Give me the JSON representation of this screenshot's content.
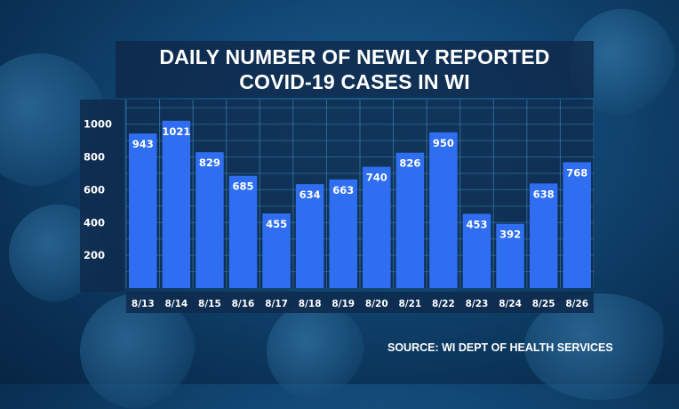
{
  "chart_data": {
    "type": "bar",
    "title": "DAILY NUMBER OF NEWLY REPORTED COVID-19 CASES IN WI",
    "title_lines": [
      "DAILY NUMBER OF NEWLY REPORTED",
      "COVID-19 CASES IN WI"
    ],
    "categories": [
      "8/13",
      "8/14",
      "8/15",
      "8/16",
      "8/17",
      "8/18",
      "8/19",
      "8/20",
      "8/21",
      "8/22",
      "8/23",
      "8/24",
      "8/25",
      "8/26"
    ],
    "values": [
      943,
      1021,
      829,
      685,
      455,
      634,
      663,
      740,
      826,
      950,
      453,
      392,
      638,
      768
    ],
    "yticks": [
      200,
      400,
      600,
      800,
      1000
    ],
    "ylim": [
      0,
      1150
    ],
    "xlabel": "",
    "ylabel": "",
    "grid": true,
    "bar_color": "#2f6ef0",
    "grid_color": "#3d82b2",
    "panel_color": "#0e2a4c"
  },
  "source_text": "SOURCE: WI DEPT OF HEALTH SERVICES"
}
